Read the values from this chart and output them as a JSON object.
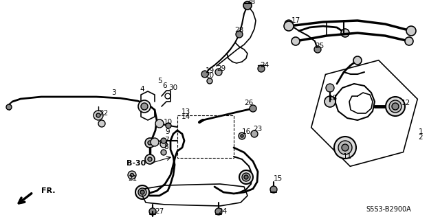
{
  "bg_color": "#ffffff",
  "ref_code": "S5S3-B2900A",
  "figsize": [
    6.4,
    3.19
  ],
  "dpi": 100
}
